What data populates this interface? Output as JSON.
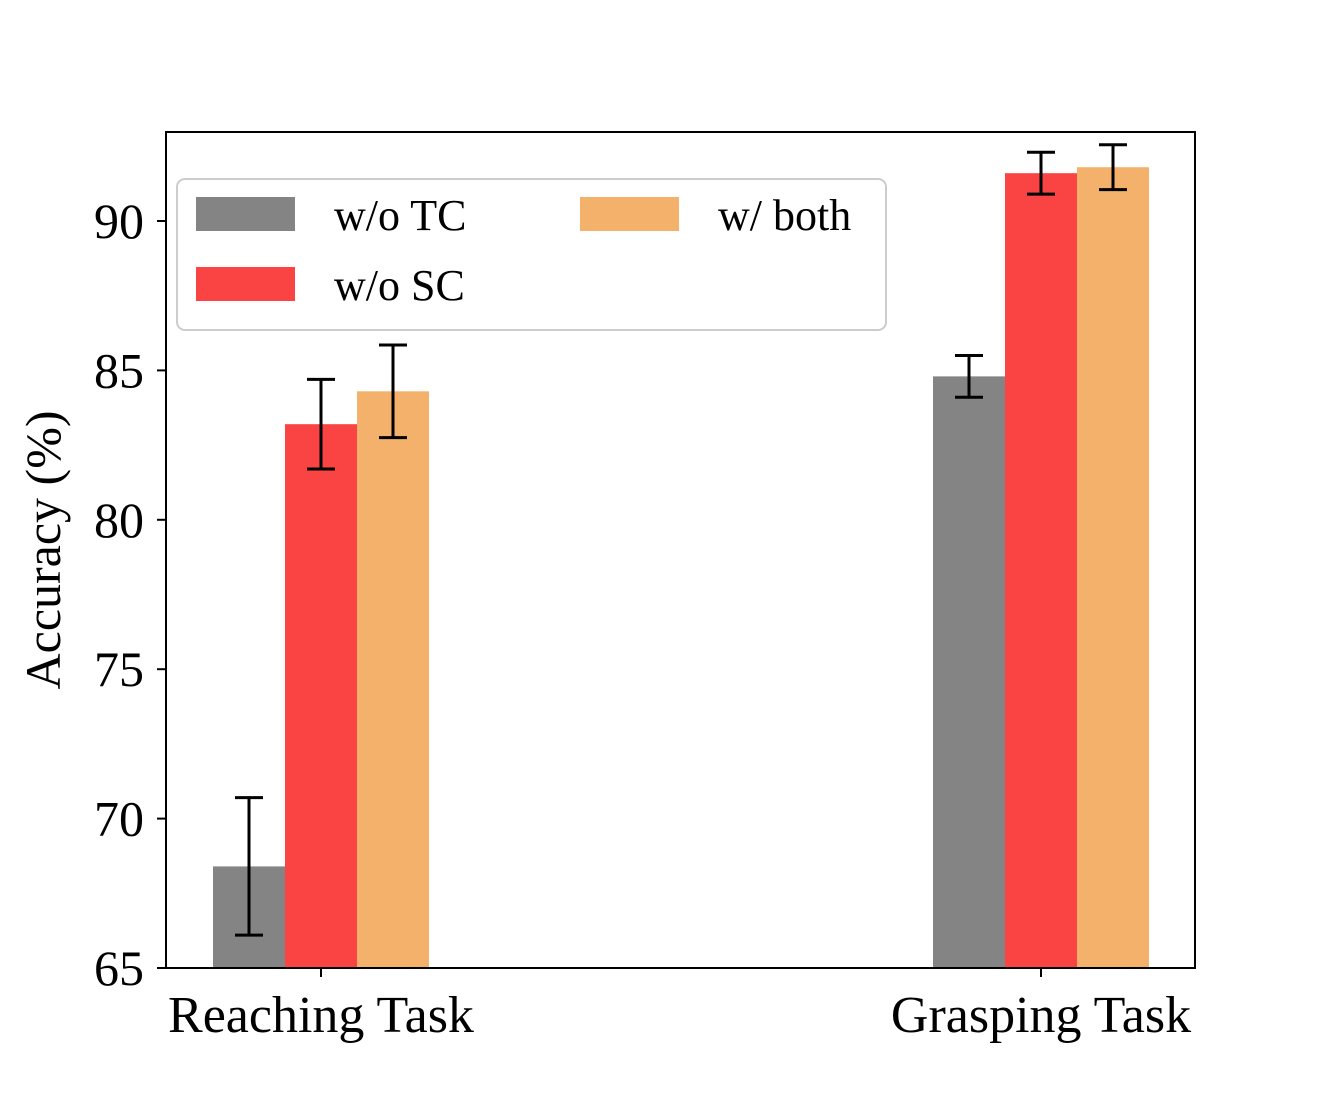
{
  "chart_data": {
    "type": "bar",
    "title": "",
    "xlabel": "",
    "ylabel": "Accuracy (%)",
    "ylim": [
      65,
      93
    ],
    "yticks": [
      65,
      70,
      75,
      80,
      85,
      90
    ],
    "categories": [
      "Reaching Task",
      "Grasping Task"
    ],
    "series": [
      {
        "name": "w/o TC",
        "color": "#848484",
        "values": [
          68.4,
          84.8
        ],
        "errors": [
          2.3,
          0.7
        ]
      },
      {
        "name": "w/o SC",
        "color": "#fa4343",
        "values": [
          83.2,
          91.6
        ],
        "errors": [
          1.5,
          0.7
        ]
      },
      {
        "name": "w/ both",
        "color": "#f3b16b",
        "values": [
          84.3,
          91.8
        ],
        "errors": [
          1.55,
          0.75
        ]
      }
    ],
    "grid": false,
    "legend": {
      "position": "upper-left",
      "columns": 2
    }
  }
}
